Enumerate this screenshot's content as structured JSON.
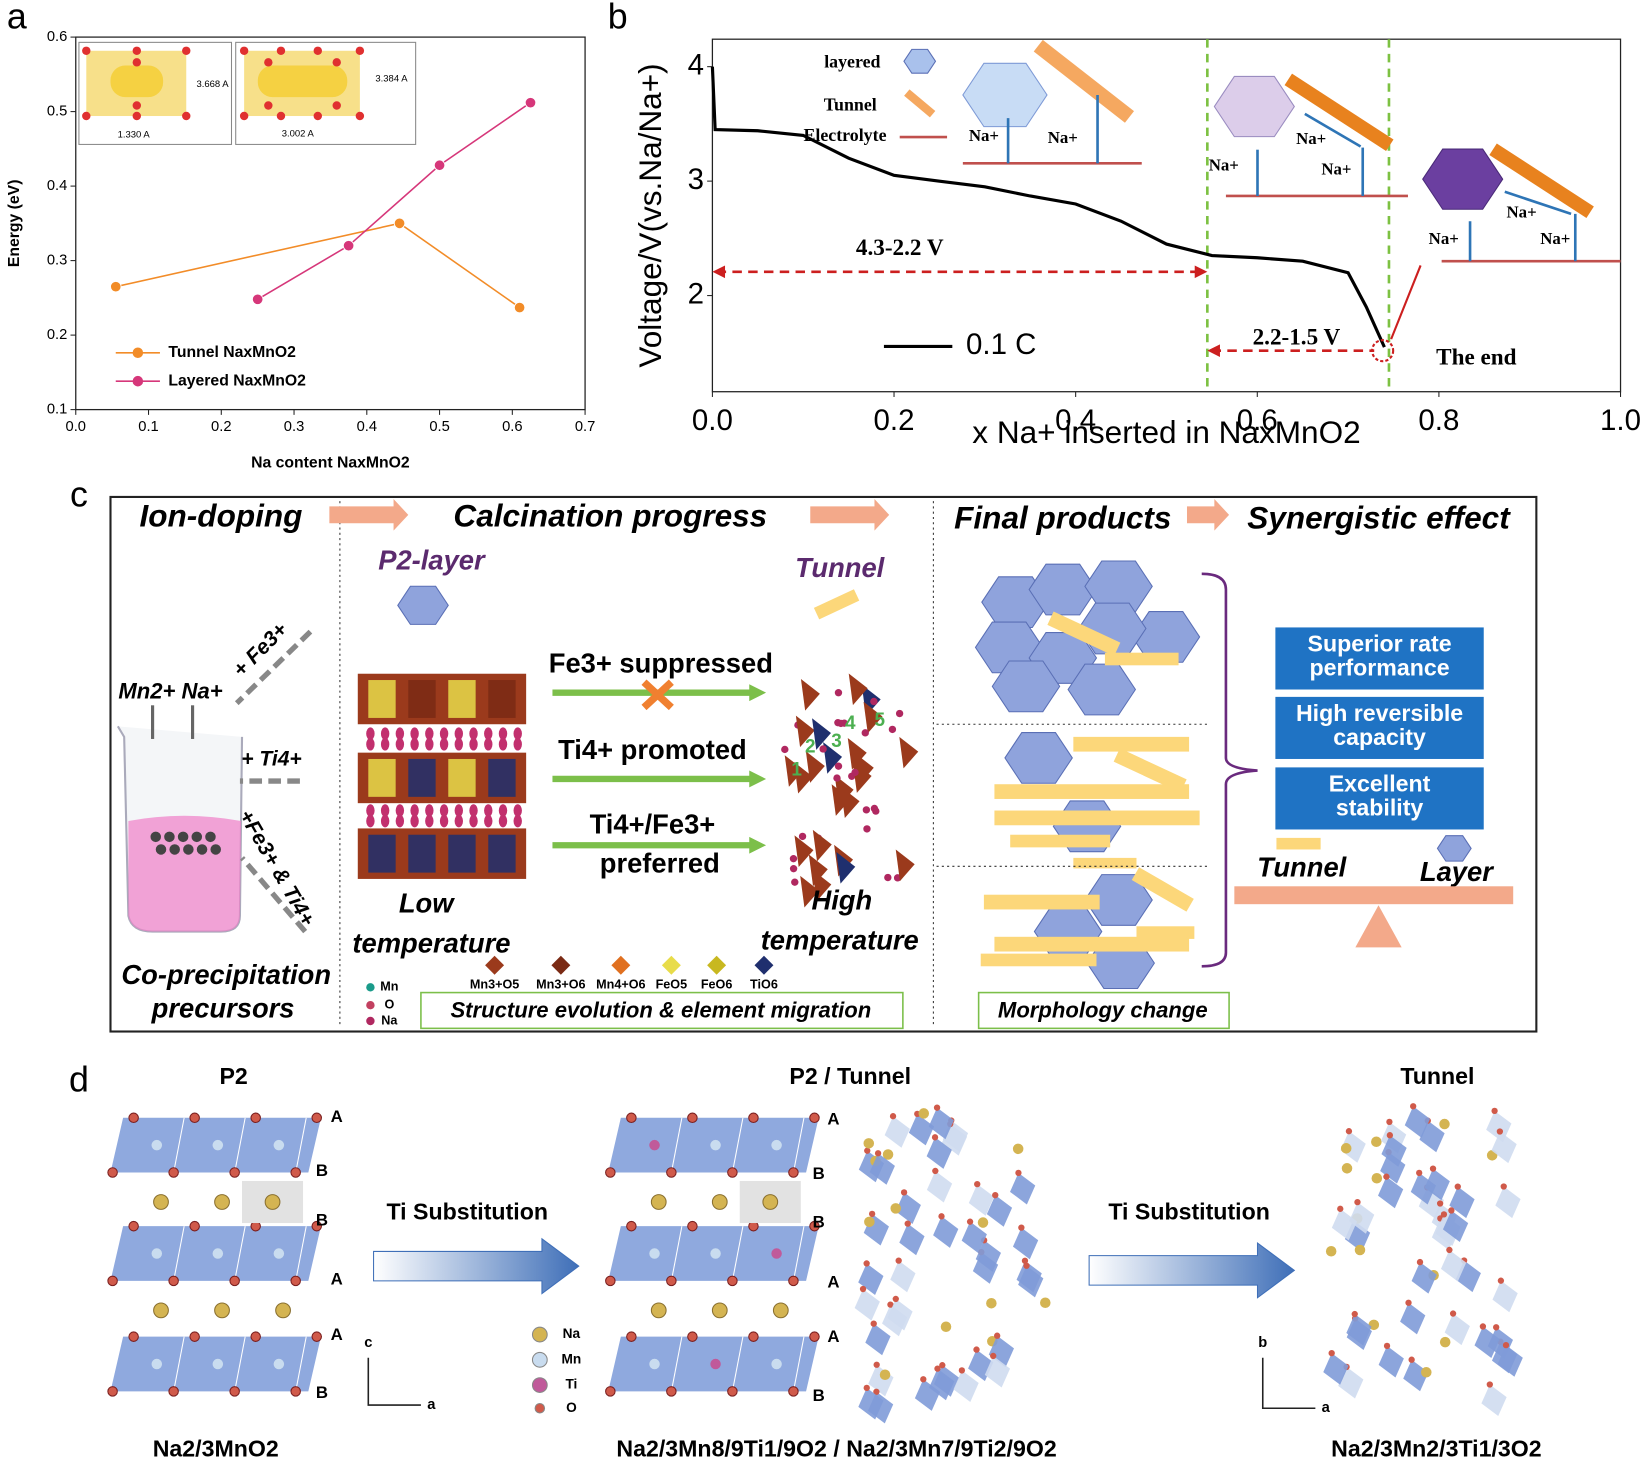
{
  "panel_labels": [
    "a",
    "b",
    "c",
    "d"
  ],
  "chart_data": [
    {
      "type": "line",
      "x_label": "Na content NaxMnO2",
      "y_label": "Energy (eV)",
      "xlim": [
        0,
        0.7
      ],
      "ylim": [
        0.1,
        0.6
      ],
      "xticks": [
        {
          "value": 0,
          "label": "0.0"
        },
        0.1,
        0.2,
        0.3,
        0.4,
        0.5,
        0.6,
        0.7
      ],
      "yticks": [
        0.1,
        0.2,
        0.3,
        0.4,
        0.5,
        0.6
      ],
      "markers": true,
      "legend": "lower left",
      "series": [
        {
          "name": "Tunnel NaxMnO2",
          "color": "#f28c28",
          "x": [
            0.055,
            0.445,
            0.61
          ],
          "values": [
            0.265,
            0.35,
            0.237
          ]
        },
        {
          "name": "Layered NaxMnO2",
          "color": "#d6377a",
          "x": [
            0.25,
            0.375,
            0.5,
            0.625
          ],
          "values": [
            0.248,
            0.32,
            0.428,
            0.512
          ]
        }
      ],
      "annotations": [
        "3.668 A",
        "1.330 A",
        "3.384 A",
        "3.002 A"
      ]
    },
    {
      "type": "line",
      "x_label": "x Na+ inserted in NaxMnO2",
      "y_label": "Voltage/V(vs.Na/Na+)",
      "xlim": [
        0,
        1
      ],
      "ylim": [
        1.16,
        4.24
      ],
      "xticks": [
        {
          "value": 0,
          "label": "0.0"
        },
        0.2,
        0.4,
        0.6,
        0.8,
        {
          "value": 1,
          "label": "1.0"
        }
      ],
      "yticks": [
        2,
        3,
        4
      ],
      "markers": false,
      "legend": "lower left",
      "series": [
        {
          "name": "0.1 C",
          "color": "#000000",
          "x": [
            0,
            0.003,
            0.05,
            0.1,
            0.15,
            0.2,
            0.25,
            0.3,
            0.35,
            0.4,
            0.45,
            0.5,
            0.55,
            0.6,
            0.65,
            0.7,
            0.72,
            0.74
          ],
          "values": [
            4.0,
            3.45,
            3.44,
            3.4,
            3.2,
            3.05,
            3.0,
            2.95,
            2.87,
            2.8,
            2.65,
            2.45,
            2.35,
            2.33,
            2.3,
            2.2,
            1.9,
            1.55
          ]
        }
      ],
      "vlines": [
        0.545,
        0.745
      ],
      "annotations": {
        "range_1": "4.3-2.2 V",
        "range_2": "2.2-1.5 V",
        "end_label": "The end",
        "layered": "layered",
        "tunnel": "Tunnel",
        "electrolyte": "Electrolyte",
        "ion": "Na+"
      }
    }
  ],
  "panel_c": {
    "headings": [
      "Ion-doping",
      "Calcination progress",
      "Final products",
      "Synergistic effect"
    ],
    "p2_layer": "P2-layer",
    "tunnel": "Tunnel",
    "precursor_ions": "Mn2+ Na+",
    "additions": [
      "+ Fe3+",
      "+ Ti4+",
      "+Fe3+ & Ti4+"
    ],
    "precursors": [
      "Co-precipitation",
      "precursors"
    ],
    "routes": [
      "Fe3+  suppressed",
      "Ti4+   promoted",
      "Ti4+/Fe3+",
      "preferred"
    ],
    "low_temperature": [
      "Low",
      "temperature"
    ],
    "high_temperature": [
      "High",
      "temperature"
    ],
    "site_numbers": [
      "1",
      "2",
      "3",
      "4",
      "5"
    ],
    "atoms": [
      "Mn",
      "O",
      "Na"
    ],
    "polyhedra": [
      "Mn3+O5",
      "Mn3+O6",
      "Mn4+O6",
      "FeO5",
      "FeO6",
      "TiO6"
    ],
    "structure_caption": "Structure evolution & element migration",
    "morphology_caption": "Morphology change",
    "benefits": [
      [
        "Superior rate",
        "performance"
      ],
      [
        "High reversible",
        "capacity"
      ],
      [
        "Excellent",
        "stability"
      ]
    ],
    "balance": [
      "Tunnel",
      "Layer"
    ]
  },
  "panel_d": {
    "titles": [
      "P2",
      "P2 / Tunnel",
      "Tunnel"
    ],
    "stacking": [
      "A",
      "B",
      "B",
      "A",
      "A",
      "B"
    ],
    "process": "Ti Substitution",
    "legend": [
      "Na",
      "Mn",
      "Ti",
      "O"
    ],
    "axes": [
      "c",
      "a",
      "b",
      "a"
    ],
    "formulas": [
      "Na2/3MnO2",
      "Na2/3Mn8/9Ti1/9O2 / Na2/3Mn7/9Ti2/9O2",
      "Na2/3Mn2/3Ti1/3O2"
    ]
  }
}
